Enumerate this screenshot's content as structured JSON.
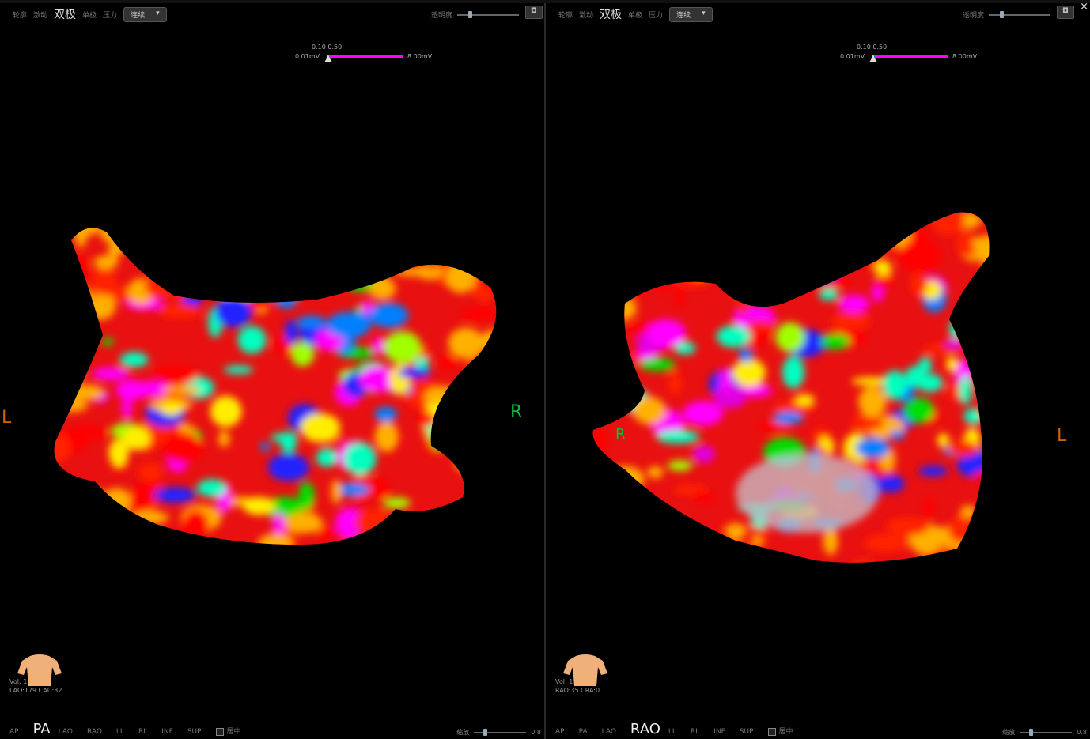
{
  "panels": [
    {
      "toolbar": {
        "items": [
          "轮廓",
          "激动"
        ],
        "active": "双极",
        "items2": [
          "单极",
          "压力"
        ],
        "mode": "连续",
        "mode_caret": "▾"
      },
      "opacity_label": "透明度",
      "opacity_value": 0.2,
      "camera_icon": "camera-icon",
      "scale": {
        "min": "0.01mV",
        "mid": "0.10 0.50",
        "max": "8.00mV"
      },
      "orient_left": {
        "label": "L",
        "color": "#c86400"
      },
      "orient_right": {
        "label": "R",
        "color": "#00c040"
      },
      "info": {
        "vol": "Vol: 1",
        "angles": "LAO:179 CAU:32"
      },
      "views": [
        "AP",
        "PA",
        "LAO",
        "RAO",
        "LL",
        "RL",
        "INF",
        "SUP"
      ],
      "active_view": "PA",
      "center_label": "居中",
      "zoom_label": "缩放",
      "zoom_value": "0.8"
    },
    {
      "toolbar": {
        "items": [
          "轮廓",
          "激动"
        ],
        "active": "双极",
        "items2": [
          "单极",
          "压力"
        ],
        "mode": "连续",
        "mode_caret": "▾"
      },
      "opacity_label": "透明度",
      "opacity_value": 0.2,
      "camera_icon": "camera-icon",
      "scale": {
        "min": "0.01mV",
        "mid": "0.10 0.50",
        "max": "8.00mV"
      },
      "orient_left": {
        "label": "R",
        "color": "#00c040"
      },
      "orient_right": {
        "label": "L",
        "color": "#c86400"
      },
      "info": {
        "vol": "Vol: 1",
        "angles": "RAO:35 CRA:0"
      },
      "views": [
        "AP",
        "PA",
        "LAO",
        "RAO",
        "LL",
        "RL",
        "INF",
        "SUP"
      ],
      "active_view": "RAO",
      "center_label": "居中",
      "zoom_label": "缩放",
      "zoom_value": "0.8"
    }
  ],
  "close_label": "×",
  "colors": {
    "voltage_high": "#ff00ff",
    "voltage_low": "#ff0000",
    "background": "#000000"
  }
}
